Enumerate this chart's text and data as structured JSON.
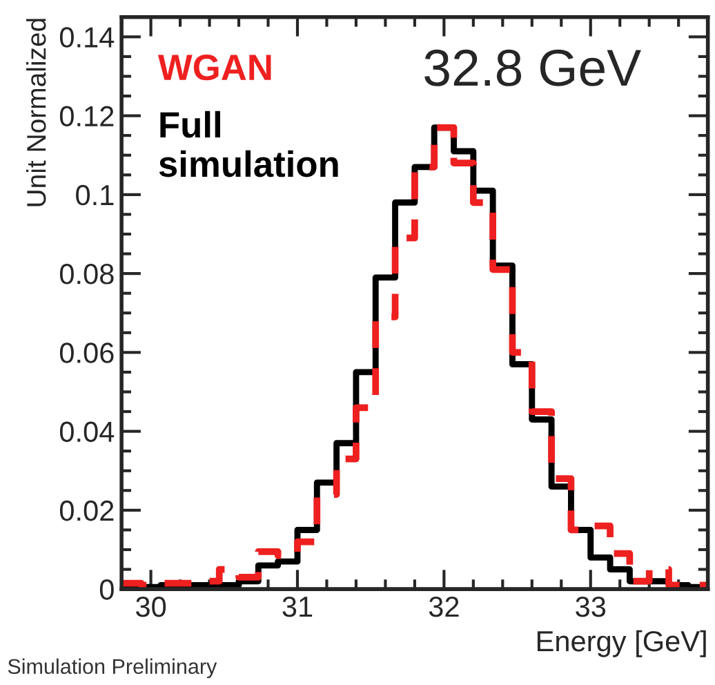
{
  "chart_data": {
    "type": "histogram",
    "title": "32.8 GeV",
    "xlabel": "Energy [GeV]",
    "ylabel": "Unit Normalized",
    "bins": [
      29.8,
      29.9333,
      30.0667,
      30.2,
      30.3333,
      30.4667,
      30.6,
      30.7333,
      30.8667,
      31.0,
      31.1333,
      31.2667,
      31.4,
      31.5333,
      31.6667,
      31.8,
      31.9333,
      32.0667,
      32.2,
      32.3333,
      32.4667,
      32.6,
      32.7333,
      32.8667,
      33.0,
      33.1333,
      33.2667,
      33.4,
      33.5333,
      33.6667,
      33.8
    ],
    "series": [
      {
        "name": "Full simulation",
        "color": "#000000",
        "line_style": "solid",
        "values": [
          0,
          0.0005,
          0.001,
          0.001,
          0.001,
          0.001,
          0.002,
          0.006,
          0.007,
          0.015,
          0.027,
          0.037,
          0.055,
          0.079,
          0.098,
          0.107,
          0.117,
          0.111,
          0.101,
          0.082,
          0.057,
          0.043,
          0.026,
          0.015,
          0.008,
          0.005,
          0.002,
          0.002,
          0.001,
          0.0005
        ]
      },
      {
        "name": "WGAN",
        "color": "#ee2020",
        "line_style": "dashed",
        "values": [
          0.0015,
          0.001,
          0.0015,
          0.0015,
          0.002,
          0.005,
          0.003,
          0.0095,
          0.0085,
          0.012,
          0.024,
          0.033,
          0.046,
          0.069,
          0.089,
          0.107,
          0.117,
          0.108,
          0.098,
          0.081,
          0.06,
          0.045,
          0.028,
          0.015,
          0.016,
          0.009,
          0.002,
          0.005,
          0.001,
          0.001
        ]
      }
    ],
    "xlim": [
      29.8,
      33.8
    ],
    "ylim": [
      0,
      0.145
    ],
    "xticks": [
      30,
      31,
      32,
      33
    ],
    "yticks": [
      0,
      0.02,
      0.04,
      0.06,
      0.08,
      0.1,
      0.12,
      0.14
    ],
    "legend": "top left",
    "grid": false,
    "annotations": [
      "Simulation Preliminary"
    ]
  }
}
